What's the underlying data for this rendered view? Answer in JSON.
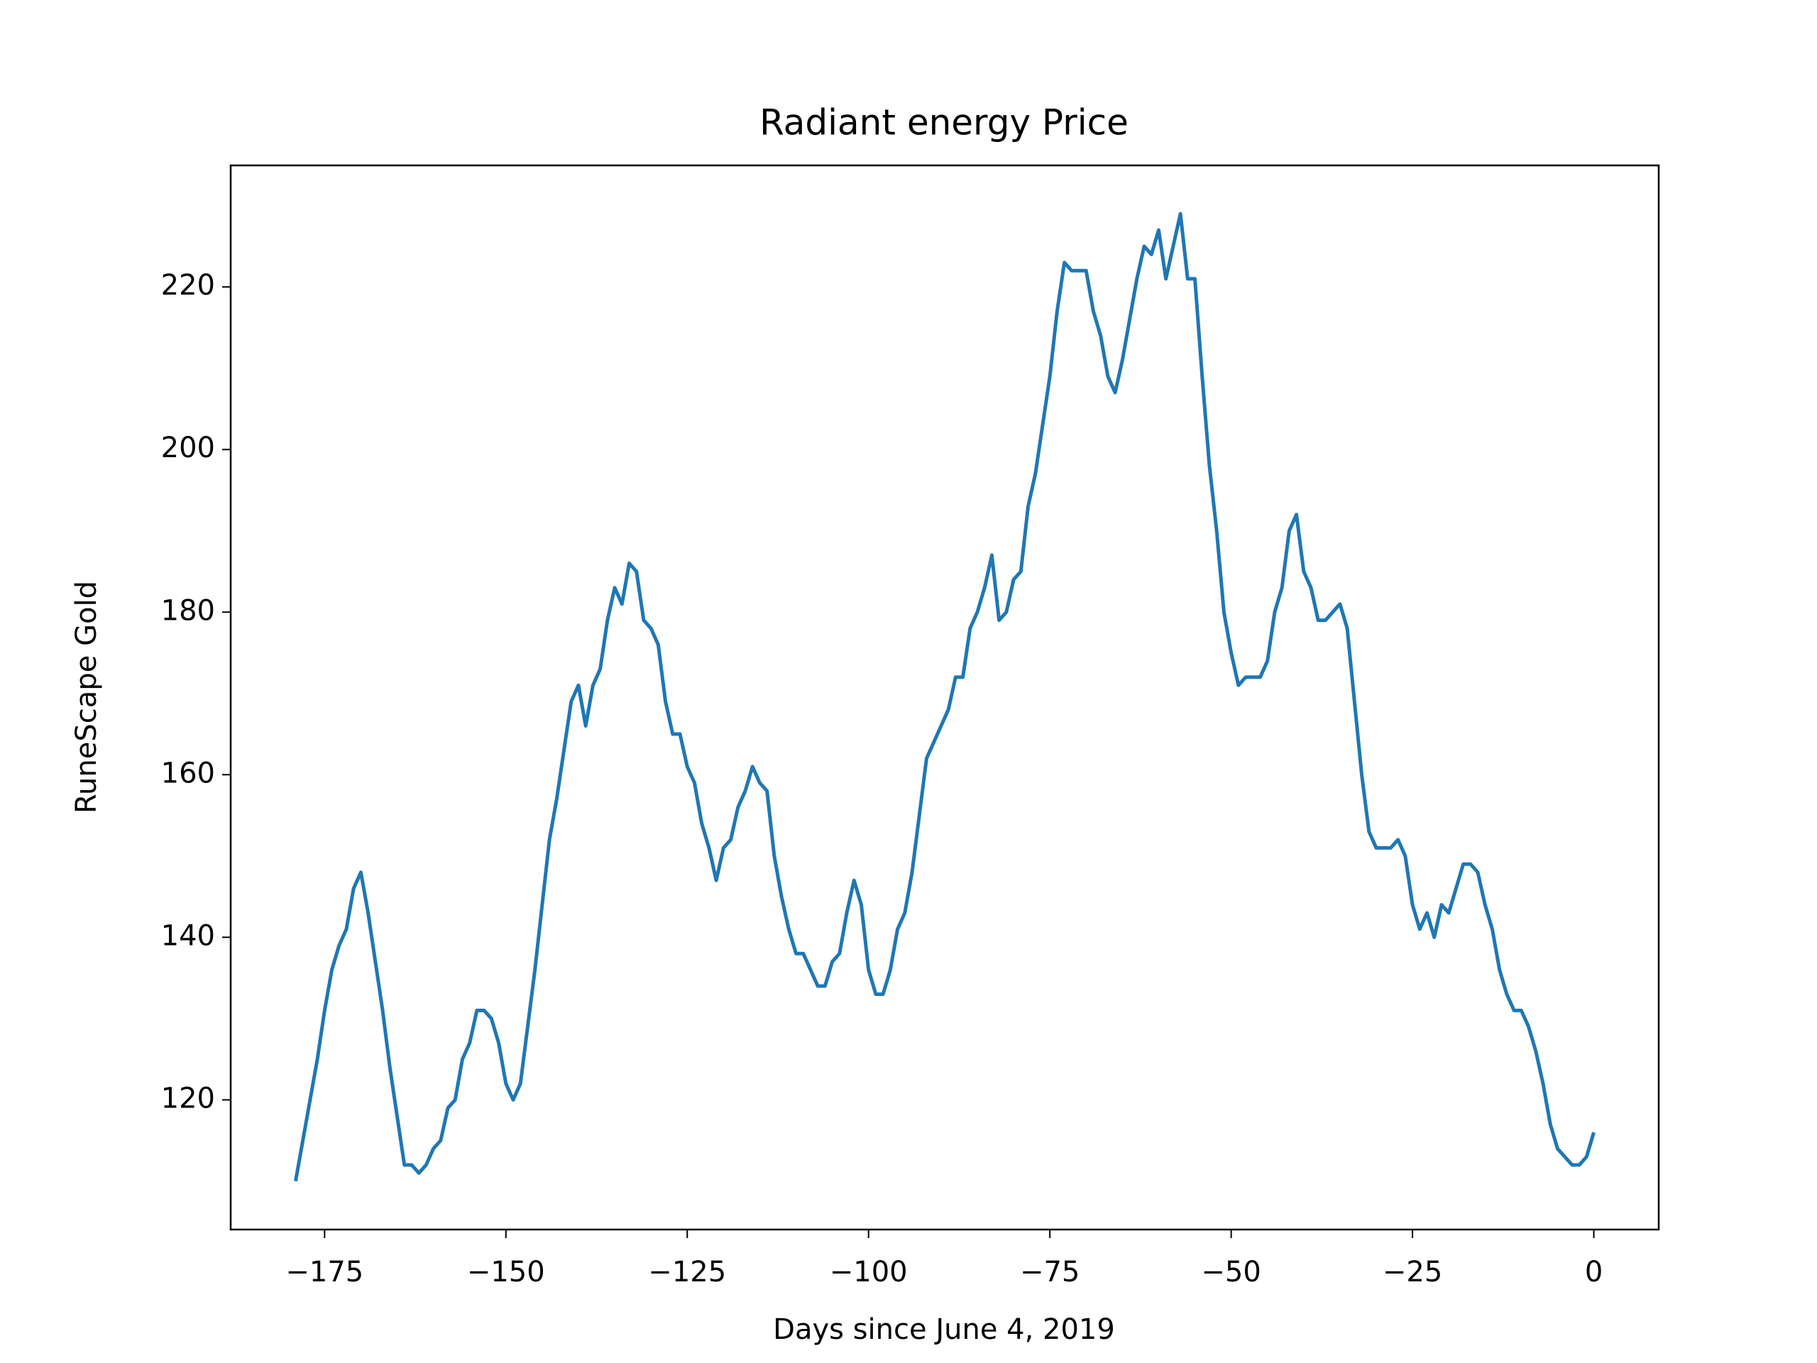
{
  "chart_data": {
    "type": "line",
    "title": "Radiant energy Price",
    "xlabel": "Days since June 4, 2019",
    "ylabel": "RuneScape Gold",
    "color": "#1f77b4",
    "x": [
      -179,
      -178,
      -177,
      -176,
      -175,
      -174,
      -173,
      -172,
      -171,
      -170,
      -169,
      -168,
      -167,
      -166,
      -165,
      -164,
      -163,
      -162,
      -161,
      -160,
      -159,
      -158,
      -157,
      -156,
      -155,
      -154,
      -153,
      -152,
      -151,
      -150,
      -149,
      -148,
      -147,
      -146,
      -145,
      -144,
      -143,
      -142,
      -141,
      -140,
      -139,
      -138,
      -137,
      -136,
      -135,
      -134,
      -133,
      -132,
      -131,
      -130,
      -129,
      -128,
      -127,
      -126,
      -125,
      -124,
      -123,
      -122,
      -121,
      -120,
      -119,
      -118,
      -117,
      -116,
      -115,
      -114,
      -113,
      -112,
      -111,
      -110,
      -109,
      -108,
      -107,
      -106,
      -105,
      -104,
      -103,
      -102,
      -101,
      -100,
      -99,
      -98,
      -97,
      -96,
      -95,
      -94,
      -93,
      -92,
      -91,
      -90,
      -89,
      -88,
      -87,
      -86,
      -85,
      -84,
      -83,
      -82,
      -81,
      -80,
      -79,
      -78,
      -77,
      -76,
      -75,
      -74,
      -73,
      -72,
      -71,
      -70,
      -69,
      -68,
      -67,
      -66,
      -65,
      -64,
      -63,
      -62,
      -61,
      -60,
      -59,
      -58,
      -57,
      -56,
      -55,
      -54,
      -53,
      -52,
      -51,
      -50,
      -49,
      -48,
      -47,
      -46,
      -45,
      -44,
      -43,
      -42,
      -41,
      -40,
      -39,
      -38,
      -37,
      -36,
      -35,
      -34,
      -33,
      -32,
      -31,
      -30,
      -29,
      -28,
      -27,
      -26,
      -25,
      -24,
      -23,
      -22,
      -21,
      -20,
      -19,
      -18,
      -17,
      -16,
      -15,
      -14,
      -13,
      -12,
      -11,
      -10,
      -9,
      -8,
      -7,
      -6,
      -5,
      -4,
      -3,
      -2,
      -1,
      0
    ],
    "values": [
      110,
      115,
      120,
      125,
      131,
      136,
      139,
      141,
      146,
      148,
      143,
      137,
      131,
      124,
      118,
      112,
      112,
      111,
      112,
      114,
      115,
      119,
      120,
      125,
      127,
      131,
      131,
      130,
      127,
      122,
      120,
      122,
      129,
      136,
      144,
      152,
      157,
      163,
      169,
      171,
      166,
      171,
      173,
      179,
      183,
      181,
      186,
      185,
      179,
      178,
      176,
      169,
      165,
      165,
      161,
      159,
      154,
      151,
      147,
      151,
      152,
      156,
      158,
      161,
      159,
      158,
      150,
      145,
      141,
      138,
      138,
      136,
      134,
      134,
      137,
      138,
      143,
      147,
      144,
      136,
      133,
      133,
      136,
      141,
      143,
      148,
      155,
      162,
      164,
      166,
      168,
      172,
      172,
      178,
      180,
      183,
      187,
      179,
      180,
      184,
      185,
      193,
      197,
      203,
      209,
      217,
      223,
      222,
      222,
      222,
      217,
      214,
      209,
      207,
      211,
      216,
      221,
      225,
      224,
      227,
      221,
      225,
      229,
      221,
      221,
      209,
      198,
      190,
      180,
      175,
      171,
      172,
      172,
      172,
      174,
      180,
      183,
      190,
      192,
      185,
      183,
      179,
      179,
      180,
      181,
      178,
      169,
      160,
      153,
      151,
      151,
      151,
      152,
      150,
      144,
      141,
      143,
      140,
      144,
      143,
      146,
      149,
      149,
      148,
      144,
      141,
      136,
      133,
      131,
      131,
      129,
      126,
      122,
      117,
      114,
      113,
      112,
      112,
      113,
      116
    ],
    "xlim": [
      -187.95,
      8.95
    ],
    "xticks": [
      {
        "value": -175,
        "label": "−175"
      },
      {
        "value": -150,
        "label": "−150"
      },
      {
        "value": -125,
        "label": "−125"
      },
      {
        "value": -100,
        "label": "−100"
      },
      {
        "value": -75,
        "label": "−75"
      },
      {
        "value": -50,
        "label": "−50"
      },
      {
        "value": -25,
        "label": "−25"
      },
      0
    ],
    "ylim": [
      104.05,
      234.95
    ],
    "yticks": [
      120,
      140,
      160,
      180,
      200,
      220
    ]
  }
}
